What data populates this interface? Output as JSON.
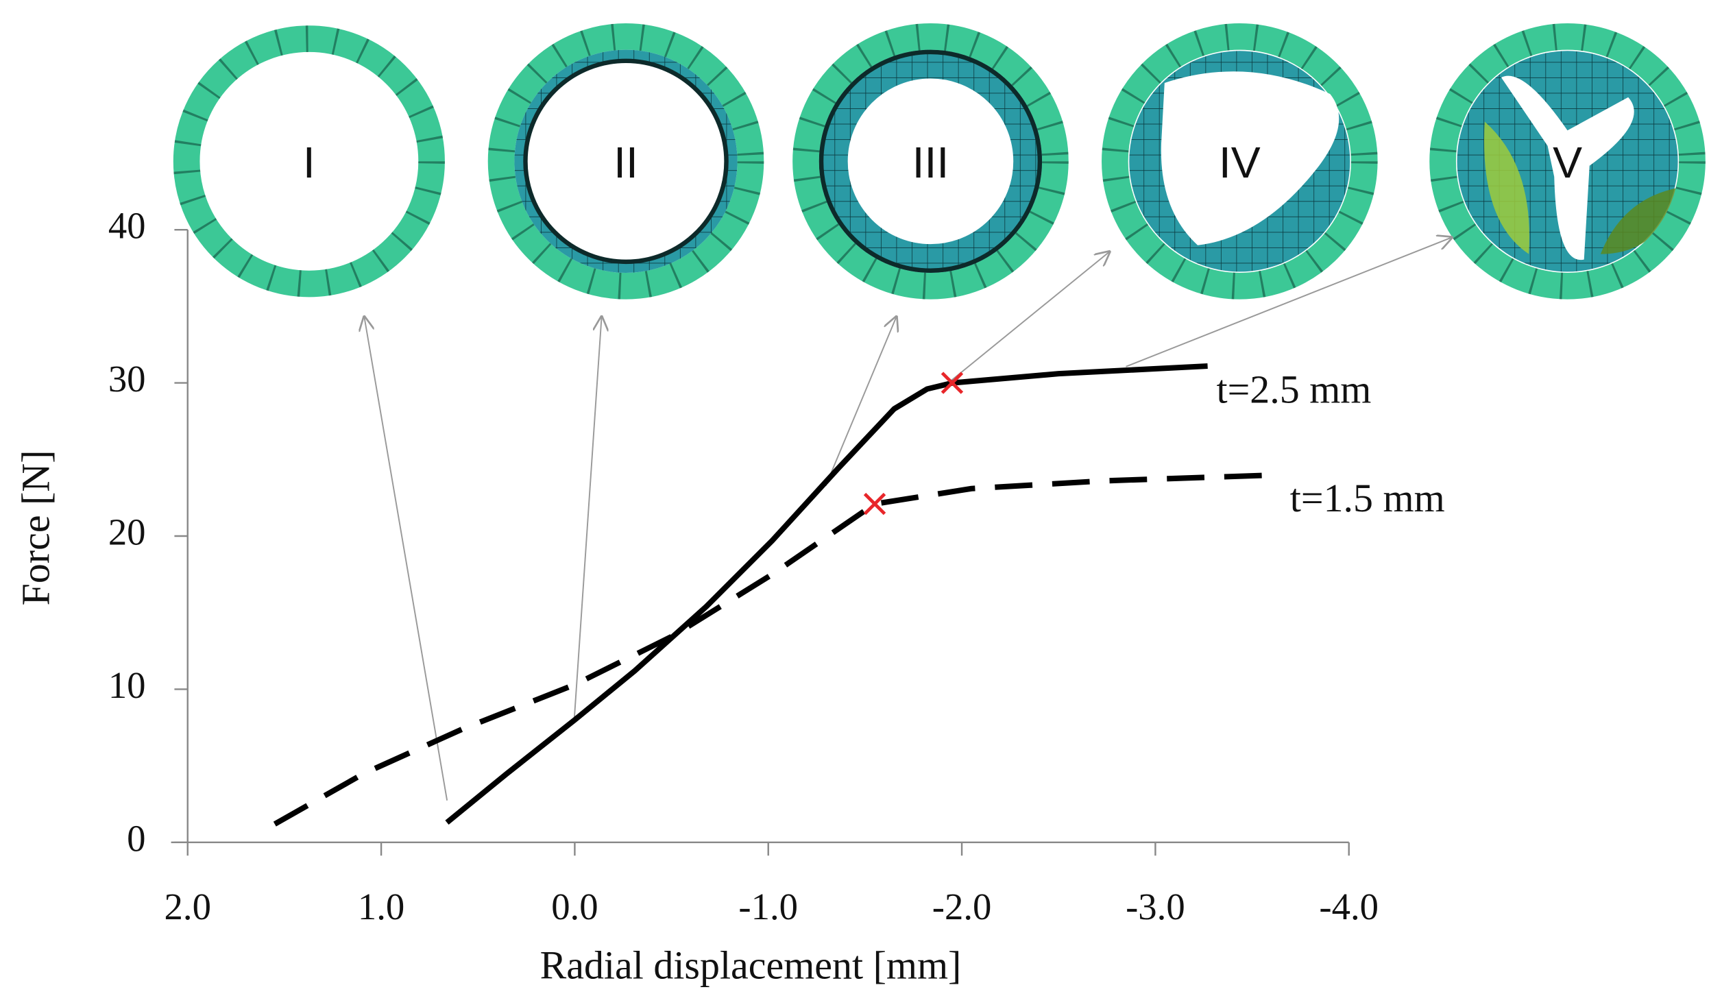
{
  "chart_data": {
    "type": "line",
    "xlabel": "Radial displacement [mm]",
    "ylabel": "Force [N]",
    "xlim": [
      2.0,
      -4.0
    ],
    "ylim": [
      0,
      40
    ],
    "xticks": [
      {
        "value": 2,
        "label": "2.0"
      },
      {
        "value": 1,
        "label": "1.0"
      },
      {
        "value": 0,
        "label": "0.0"
      },
      {
        "value": -1,
        "label": "-1.0"
      },
      {
        "value": -2,
        "label": "-2.0"
      },
      {
        "value": -3,
        "label": "-3.0"
      },
      {
        "value": -4,
        "label": "-4.0"
      }
    ],
    "yticks": [
      0,
      10,
      20,
      30,
      40
    ],
    "grid": false,
    "series": [
      {
        "name": "t=2.5 mm",
        "color": "#000000",
        "dashed": false,
        "x": [
          0.66,
          0.35,
          0.0,
          -0.31,
          -0.68,
          -1.02,
          -1.36,
          -1.65,
          -1.82,
          -1.95,
          -2.5,
          -3.27
        ],
        "values": [
          1.3,
          4.5,
          8.0,
          11.2,
          15.4,
          19.7,
          24.4,
          28.3,
          29.6,
          30.0,
          30.6,
          31.1
        ]
      },
      {
        "name": "t=1.5 mm",
        "color": "#000000",
        "dashed": true,
        "x": [
          1.55,
          1.09,
          0.58,
          0.0,
          -0.51,
          -1.02,
          -1.55,
          -2.05,
          -2.73,
          -3.65
        ],
        "values": [
          1.2,
          4.5,
          7.4,
          10.3,
          13.5,
          17.5,
          22.1,
          23.1,
          23.6,
          24.0
        ]
      }
    ],
    "failure_points": {
      "color": "#e8262a",
      "x": [
        -1.95,
        -1.55
      ],
      "y": [
        30.0,
        22.1
      ]
    },
    "inset_labels": [
      "I",
      "II",
      "III",
      "IV",
      "V"
    ]
  }
}
